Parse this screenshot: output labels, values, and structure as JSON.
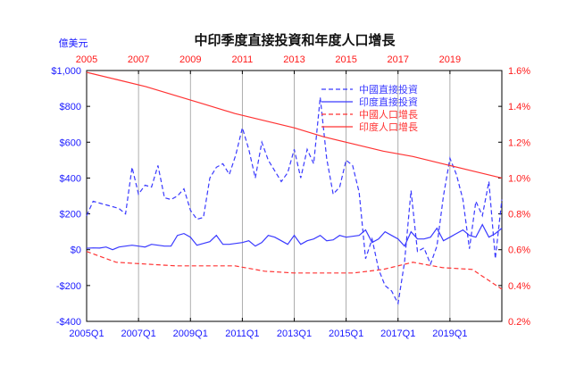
{
  "chart_data": {
    "type": "line",
    "title": "中印季度直接投資和年度人口增長",
    "left_unit": "億美元",
    "colors": {
      "fdi": "#3a3aff",
      "pop": "#ff3333",
      "left_axis": "#1a1aff",
      "right_axis": "#ff1a1a"
    },
    "left_axis": {
      "ylim": [
        -400,
        1000
      ],
      "ticks": [
        -400,
        -200,
        0,
        200,
        400,
        600,
        800,
        1000
      ],
      "tick_labels": [
        "-$400",
        "-$200",
        "$0",
        "$200",
        "$400",
        "$600",
        "$800",
        "$1,000"
      ]
    },
    "right_axis": {
      "ylim": [
        0.2,
        1.6
      ],
      "ticks": [
        0.2,
        0.4,
        0.6,
        0.8,
        1.0,
        1.2,
        1.4,
        1.6
      ],
      "tick_labels": [
        "0.2%",
        "0.4%",
        "0.6%",
        "0.8%",
        "1.0%",
        "1.2%",
        "1.4%",
        "1.6%"
      ]
    },
    "bottom_axis": {
      "ticks": [
        "2005Q1",
        "2007Q1",
        "2009Q1",
        "2011Q1",
        "2013Q1",
        "2015Q1",
        "2017Q1",
        "2019Q1"
      ]
    },
    "top_axis": {
      "ticks": [
        "2005",
        "2007",
        "2009",
        "2011",
        "2013",
        "2015",
        "2017",
        "2019"
      ]
    },
    "legend": {
      "position": "top-right",
      "entries": [
        {
          "label": "中國直接投資",
          "color": "#3a3aff",
          "dash": true
        },
        {
          "label": "印度直接投資",
          "color": "#3a3aff",
          "dash": false
        },
        {
          "label": "中國人口增長",
          "color": "#ff3333",
          "dash": true
        },
        {
          "label": "印度人口增長",
          "color": "#ff3333",
          "dash": false
        }
      ]
    },
    "quarterly_x_start": "2005Q1",
    "annual_x_start": "2005",
    "series": [
      {
        "name": "中國直接投資",
        "axis": "left",
        "values": [
          190,
          270,
          260,
          250,
          240,
          230,
          200,
          460,
          310,
          360,
          350,
          470,
          290,
          280,
          300,
          340,
          220,
          170,
          180,
          400,
          460,
          480,
          420,
          530,
          680,
          560,
          400,
          600,
          500,
          440,
          380,
          430,
          560,
          400,
          560,
          480,
          850,
          510,
          310,
          350,
          500,
          470,
          320,
          -50,
          60,
          -110,
          -200,
          -230,
          -300,
          -70,
          330,
          -10,
          10,
          -80,
          20,
          300,
          510,
          420,
          280,
          5,
          270,
          190,
          380,
          -50,
          280
        ]
      },
      {
        "name": "印度直接投資",
        "axis": "left",
        "values": [
          8,
          10,
          9,
          15,
          0,
          15,
          20,
          25,
          20,
          15,
          30,
          25,
          20,
          20,
          80,
          90,
          70,
          25,
          35,
          45,
          80,
          30,
          30,
          35,
          40,
          50,
          20,
          40,
          80,
          70,
          50,
          30,
          80,
          30,
          50,
          60,
          80,
          50,
          55,
          80,
          70,
          75,
          80,
          110,
          40,
          60,
          100,
          80,
          60,
          20,
          100,
          60,
          60,
          70,
          120,
          50,
          70,
          90,
          110,
          80,
          70,
          140,
          70,
          90,
          120
        ]
      },
      {
        "name": "中國人口增長",
        "axis": "right",
        "values": [
          0.59,
          0.53,
          0.52,
          0.51,
          0.51,
          0.51,
          0.48,
          0.47,
          0.47,
          0.47,
          0.49,
          0.53,
          0.5,
          0.49,
          0.38
        ]
      },
      {
        "name": "印度人口增長",
        "axis": "right",
        "values": [
          1.59,
          1.55,
          1.51,
          1.46,
          1.41,
          1.36,
          1.32,
          1.28,
          1.23,
          1.19,
          1.15,
          1.12,
          1.08,
          1.04,
          1.0
        ]
      }
    ]
  }
}
